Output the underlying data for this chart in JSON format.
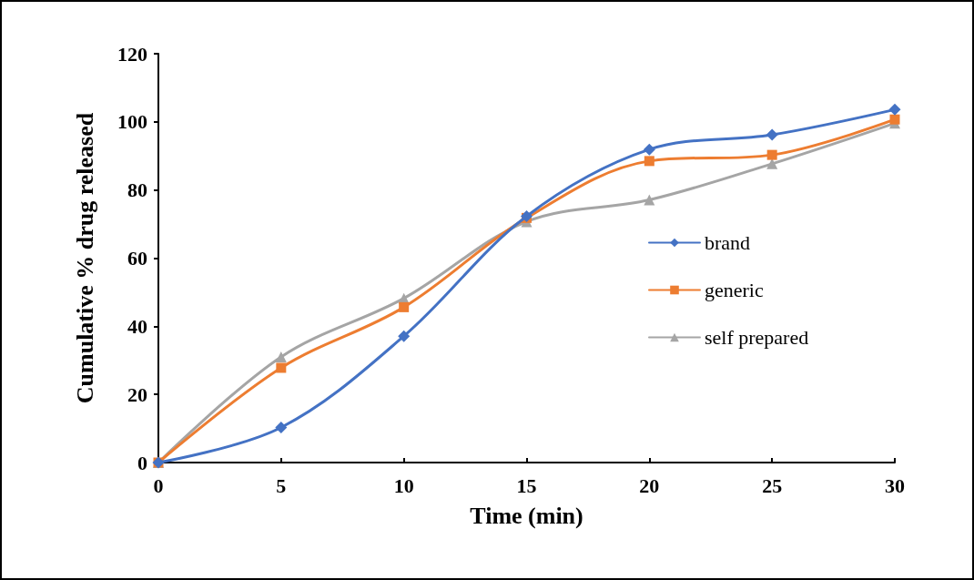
{
  "chart_data": {
    "type": "line",
    "xlabel": "Time (min)",
    "ylabel": "Cumulative % drug released",
    "x": [
      0,
      5,
      10,
      15,
      20,
      25,
      30
    ],
    "series": [
      {
        "name": "brand",
        "color": "#4472c4",
        "marker": "diamond",
        "values": [
          0,
          10.3,
          37.1,
          72.3,
          91.9,
          96.2,
          103.6
        ]
      },
      {
        "name": "generic",
        "color": "#ed7d31",
        "marker": "square",
        "values": [
          0,
          27.8,
          45.6,
          71.8,
          88.5,
          90.3,
          100.7
        ]
      },
      {
        "name": "self prepared",
        "color": "#a5a5a5",
        "marker": "triangle",
        "values": [
          0,
          31,
          48.2,
          70.7,
          77.1,
          87.7,
          99.6
        ]
      }
    ],
    "xlim": [
      0,
      30
    ],
    "xticks": [
      0,
      5,
      10,
      15,
      20,
      25,
      30
    ],
    "ylim": [
      0,
      120
    ],
    "yticks": [
      0,
      20,
      40,
      60,
      80,
      100,
      120
    ],
    "grid": false,
    "legend": "right",
    "line_style": "solid"
  }
}
